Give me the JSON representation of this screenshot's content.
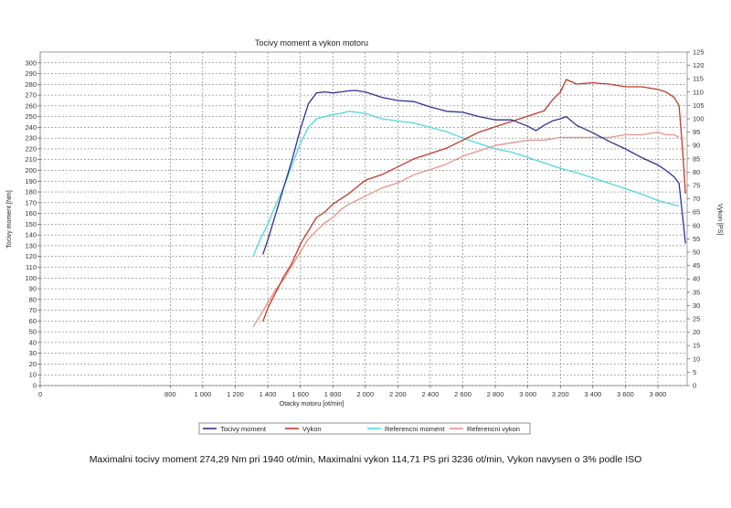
{
  "chart_data": {
    "type": "line",
    "title": "Tocivy moment a vykon motoru",
    "xlabel": "Otacky motoru [ot/min]",
    "ylabel": "Tocivy moment [Nm]",
    "ylabel2": "Vykon [PS]",
    "xlim": [
      0,
      3980
    ],
    "ylim": [
      0,
      310
    ],
    "ylim2": [
      0,
      125
    ],
    "x_ticks": [
      0,
      800,
      1000,
      1200,
      1400,
      1600,
      1800,
      2000,
      2200,
      2400,
      2600,
      2800,
      3000,
      3200,
      3400,
      3600,
      3800
    ],
    "x_tick_labels": [
      "0",
      "800",
      "1 000",
      "1 200",
      "1 400",
      "1 600",
      "1 800",
      "2 000",
      "2 200",
      "2 400",
      "2 600",
      "2 800",
      "3 000",
      "3 200",
      "3 400",
      "3 600",
      "3 800"
    ],
    "y_ticks": [
      0,
      10,
      20,
      30,
      40,
      50,
      60,
      70,
      80,
      90,
      100,
      110,
      120,
      130,
      140,
      150,
      160,
      170,
      180,
      190,
      200,
      210,
      220,
      230,
      240,
      250,
      260,
      270,
      280,
      290,
      300
    ],
    "y2_ticks": [
      0,
      5,
      10,
      15,
      20,
      25,
      30,
      35,
      40,
      45,
      50,
      55,
      60,
      65,
      70,
      75,
      80,
      85,
      90,
      95,
      100,
      105,
      110,
      115,
      120,
      125
    ],
    "grid": true,
    "legend_position": "bottom",
    "series": [
      {
        "name": "Tocivy moment",
        "axis": "left",
        "color": "#2e3192",
        "x": [
          1370,
          1400,
          1450,
          1500,
          1550,
          1600,
          1650,
          1700,
          1750,
          1800,
          1850,
          1900,
          1940,
          2000,
          2100,
          2200,
          2300,
          2400,
          2500,
          2600,
          2700,
          2800,
          2900,
          3000,
          3050,
          3100,
          3150,
          3200,
          3236,
          3300,
          3400,
          3500,
          3600,
          3700,
          3800,
          3850,
          3900,
          3930,
          3950,
          3970
        ],
        "values": [
          122,
          135,
          160,
          185,
          210,
          238,
          262,
          272,
          273,
          272,
          273,
          274,
          274.29,
          273,
          268,
          265,
          264,
          259,
          255,
          254,
          250,
          247,
          247,
          241,
          237,
          242,
          246,
          248,
          250,
          242,
          235,
          227,
          220,
          212,
          205,
          200,
          194,
          188,
          160,
          132
        ]
      },
      {
        "name": "Vykon",
        "axis": "right",
        "color": "#c0392b",
        "x": [
          1370,
          1400,
          1450,
          1500,
          1550,
          1600,
          1650,
          1700,
          1750,
          1800,
          1850,
          1900,
          1940,
          2000,
          2100,
          2200,
          2300,
          2400,
          2500,
          2600,
          2700,
          2800,
          2900,
          3000,
          3100,
          3150,
          3200,
          3236,
          3300,
          3400,
          3500,
          3600,
          3700,
          3800,
          3850,
          3900,
          3930,
          3950,
          3970
        ],
        "values": [
          24,
          29,
          35,
          41,
          46,
          53,
          58,
          63,
          65,
          68,
          70,
          72,
          74,
          77,
          79,
          82,
          85,
          87,
          89,
          92,
          95,
          97,
          99,
          101,
          103,
          107,
          110,
          114.71,
          113,
          113.5,
          113,
          112,
          112,
          111,
          110,
          108,
          105,
          90,
          72
        ]
      },
      {
        "name": "Referencni moment",
        "axis": "left",
        "color": "#4dd8e0",
        "x": [
          1310,
          1350,
          1400,
          1450,
          1500,
          1550,
          1600,
          1650,
          1700,
          1750,
          1800,
          1850,
          1900,
          2000,
          2100,
          2200,
          2300,
          2400,
          2500,
          2600,
          2700,
          2800,
          2900,
          3000,
          3100,
          3200,
          3300,
          3400,
          3500,
          3600,
          3700,
          3800,
          3850,
          3900,
          3930
        ],
        "values": [
          120,
          135,
          150,
          168,
          185,
          205,
          225,
          240,
          248,
          250,
          252,
          253,
          255,
          253,
          248,
          246,
          244,
          240,
          236,
          230,
          225,
          220,
          217,
          212,
          207,
          202,
          198,
          193,
          188,
          183,
          178,
          172,
          170,
          168,
          167
        ]
      },
      {
        "name": "Referencni vykon",
        "axis": "right",
        "color": "#e8928a",
        "x": [
          1310,
          1350,
          1400,
          1450,
          1500,
          1550,
          1600,
          1650,
          1700,
          1750,
          1800,
          1850,
          1900,
          2000,
          2100,
          2200,
          2300,
          2400,
          2500,
          2600,
          2700,
          2800,
          2900,
          3000,
          3100,
          3200,
          3236,
          3300,
          3400,
          3500,
          3600,
          3700,
          3800,
          3850,
          3900,
          3930
        ],
        "values": [
          22,
          26,
          31,
          36,
          40,
          45,
          50,
          55,
          58,
          61,
          63,
          66,
          68,
          71,
          74,
          76,
          79,
          81,
          83,
          86,
          88,
          90,
          91,
          92,
          92,
          93,
          93,
          93,
          93,
          93,
          94,
          94,
          95,
          94,
          94,
          93
        ]
      }
    ]
  },
  "summary_text": "Maximalni tocivy moment 274,29 Nm pri 1940 ot/min,  Maximalni vykon 114,71 PS pri 3236 ot/min,  Vykon navysen o 3% podle ISO"
}
